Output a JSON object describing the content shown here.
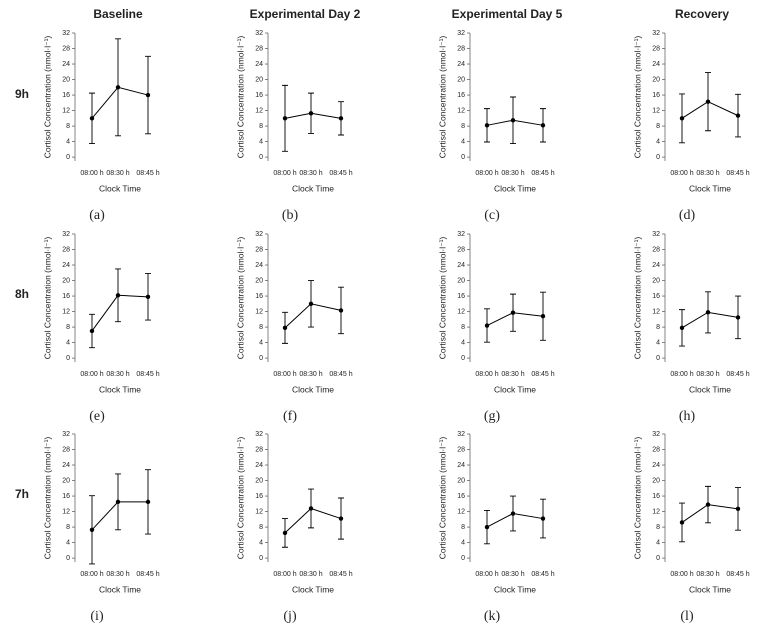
{
  "column_titles": [
    "Baseline",
    "Experimental Day 2",
    "Experimental Day 5",
    "Recovery"
  ],
  "row_labels": [
    "9h",
    "8h",
    "7h"
  ],
  "chart_data": [
    {
      "type": "line",
      "label": "(a)",
      "categories": [
        "08:00 h",
        "08:30 h",
        "08:45 h"
      ],
      "values": [
        10,
        18,
        16
      ],
      "errors": [
        6.5,
        12.5,
        10
      ],
      "color": "#000000",
      "xlabel": "Clock Time",
      "ylabel": "Cortisol Concentration (nmol·l⁻¹)",
      "ylim": [
        -1,
        32
      ],
      "yticks": [
        0,
        4,
        8,
        12,
        16,
        20,
        24,
        28,
        32
      ]
    },
    {
      "type": "line",
      "label": "(b)",
      "categories": [
        "08:00 h",
        "08:30 h",
        "08:45 h"
      ],
      "values": [
        10,
        11.3,
        10
      ],
      "errors": [
        8.5,
        5.2,
        4.3
      ],
      "color": "#000000",
      "xlabel": "Clock Time",
      "ylabel": "Cortisol Concentration (nmol·l⁻¹)",
      "ylim": [
        -1,
        32
      ],
      "yticks": [
        0,
        4,
        8,
        12,
        16,
        20,
        24,
        28,
        32
      ]
    },
    {
      "type": "line",
      "label": "(c)",
      "categories": [
        "08:00 h",
        "08:30 h",
        "08:45 h"
      ],
      "values": [
        8.2,
        9.5,
        8.2
      ],
      "errors": [
        4.3,
        6,
        4.3
      ],
      "color": "#000000",
      "xlabel": "Clock Time",
      "ylabel": "Cortisol Concentration (nmol·l⁻¹)",
      "ylim": [
        -1,
        32
      ],
      "yticks": [
        0,
        4,
        8,
        12,
        16,
        20,
        24,
        28,
        32
      ]
    },
    {
      "type": "line",
      "label": "(d)",
      "categories": [
        "08:00 h",
        "08:30 h",
        "08:45 h"
      ],
      "values": [
        10,
        14.3,
        10.7
      ],
      "errors": [
        6.3,
        7.5,
        5.5
      ],
      "color": "#000000",
      "xlabel": "Clock Time",
      "ylabel": "Cortisol Concentration (nmol·l⁻¹)",
      "ylim": [
        -1,
        32
      ],
      "yticks": [
        0,
        4,
        8,
        12,
        16,
        20,
        24,
        28,
        32
      ]
    },
    {
      "type": "line",
      "label": "(e)",
      "categories": [
        "08:00 h",
        "08:30 h",
        "08:45 h"
      ],
      "values": [
        7,
        16.2,
        15.8
      ],
      "errors": [
        4.3,
        6.8,
        6
      ],
      "color": "#000000",
      "xlabel": "Clock Time",
      "ylabel": "Cortisol Concentration (nmol·l⁻¹)",
      "ylim": [
        -1,
        32
      ],
      "yticks": [
        0,
        4,
        8,
        12,
        16,
        20,
        24,
        28,
        32
      ]
    },
    {
      "type": "line",
      "label": "(f)",
      "categories": [
        "08:00 h",
        "08:30 h",
        "08:45 h"
      ],
      "values": [
        7.8,
        14,
        12.3
      ],
      "errors": [
        4,
        6,
        6
      ],
      "color": "#000000",
      "xlabel": "Clock Time",
      "ylabel": "Cortisol Concentration (nmol·l⁻¹)",
      "ylim": [
        -1,
        32
      ],
      "yticks": [
        0,
        4,
        8,
        12,
        16,
        20,
        24,
        28,
        32
      ]
    },
    {
      "type": "line",
      "label": "(g)",
      "categories": [
        "08:00 h",
        "08:30 h",
        "08:45 h"
      ],
      "values": [
        8.4,
        11.7,
        10.8
      ],
      "errors": [
        4.3,
        4.8,
        6.2
      ],
      "color": "#000000",
      "xlabel": "Clock Time",
      "ylabel": "Cortisol Concentration (nmol·l⁻¹)",
      "ylim": [
        -1,
        32
      ],
      "yticks": [
        0,
        4,
        8,
        12,
        16,
        20,
        24,
        28,
        32
      ]
    },
    {
      "type": "line",
      "label": "(h)",
      "categories": [
        "08:00 h",
        "08:30 h",
        "08:45 h"
      ],
      "values": [
        7.8,
        11.8,
        10.5
      ],
      "errors": [
        4.7,
        5.3,
        5.5
      ],
      "color": "#000000",
      "xlabel": "Clock Time",
      "ylabel": "Cortisol Concentration (nmol·l⁻¹)",
      "ylim": [
        -1,
        32
      ],
      "yticks": [
        0,
        4,
        8,
        12,
        16,
        20,
        24,
        28,
        32
      ]
    },
    {
      "type": "line",
      "label": "(i)",
      "categories": [
        "08:00 h",
        "08:30 h",
        "08:45 h"
      ],
      "values": [
        7.3,
        14.5,
        14.5
      ],
      "errors": [
        8.8,
        7.2,
        8.3
      ],
      "color": "#000000",
      "xlabel": "Clock Time",
      "ylabel": "Cortisol Concentration (nmol·l⁻¹)",
      "ylim": [
        -1,
        32
      ],
      "yticks": [
        0,
        4,
        8,
        12,
        16,
        20,
        24,
        28,
        32
      ]
    },
    {
      "type": "line",
      "label": "(j)",
      "categories": [
        "08:00 h",
        "08:30 h",
        "08:45 h"
      ],
      "values": [
        6.5,
        12.8,
        10.2
      ],
      "errors": [
        3.7,
        5,
        5.3
      ],
      "color": "#000000",
      "xlabel": "Clock Time",
      "ylabel": "Cortisol Concentration (nmol·l⁻¹)",
      "ylim": [
        -1,
        32
      ],
      "yticks": [
        0,
        4,
        8,
        12,
        16,
        20,
        24,
        28,
        32
      ]
    },
    {
      "type": "line",
      "label": "(k)",
      "categories": [
        "08:00 h",
        "08:30 h",
        "08:45 h"
      ],
      "values": [
        8,
        11.5,
        10.2
      ],
      "errors": [
        4.3,
        4.5,
        5
      ],
      "color": "#000000",
      "xlabel": "Clock Time",
      "ylabel": "Cortisol Concentration (nmol·l⁻¹)",
      "ylim": [
        -1,
        32
      ],
      "yticks": [
        0,
        4,
        8,
        12,
        16,
        20,
        24,
        28,
        32
      ]
    },
    {
      "type": "line",
      "label": "(l)",
      "categories": [
        "08:00 h",
        "08:30 h",
        "08:45 h"
      ],
      "values": [
        9.2,
        13.8,
        12.7
      ],
      "errors": [
        5,
        4.7,
        5.5
      ],
      "color": "#000000",
      "xlabel": "Clock Time",
      "ylabel": "Cortisol Concentration (nmol·l⁻¹)",
      "ylim": [
        -1,
        32
      ],
      "yticks": [
        0,
        4,
        8,
        12,
        16,
        20,
        24,
        28,
        32
      ]
    }
  ]
}
